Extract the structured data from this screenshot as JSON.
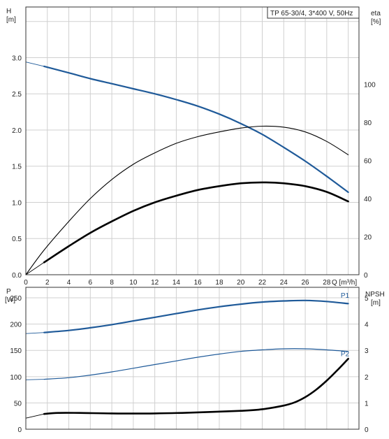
{
  "title": "TP 65-30/4, 3*400 V, 50Hz",
  "colors": {
    "blue": "#1f5a99",
    "black": "#000000",
    "grid": "#d0d0d0",
    "frame": "#333333"
  },
  "chart_data": [
    {
      "type": "line",
      "name": "performance",
      "title": "TP 65-30/4, 3*400 V, 50Hz",
      "xlabel": "Q [m³/h]",
      "x_ticks": [
        0,
        2,
        4,
        6,
        8,
        10,
        12,
        14,
        16,
        18,
        20,
        22,
        24,
        26,
        28
      ],
      "xlim": [
        0,
        31
      ],
      "ylabel_left": [
        "H",
        "[m]"
      ],
      "y_left_ticks": [
        "0.0",
        "0.5",
        "1.0",
        "1.5",
        "2.0",
        "2.5",
        "3.0"
      ],
      "ylim_left": [
        0,
        3.7
      ],
      "ylabel_right": [
        "eta",
        "[%]"
      ],
      "y_right_ticks": [
        "0",
        "20",
        "40",
        "60",
        "80",
        "100"
      ],
      "ylim_right": [
        0,
        140.6
      ],
      "grid": true,
      "series": [
        {
          "key": "H",
          "axis": "left",
          "color": "blue",
          "width": 2.2,
          "x": [
            1.7,
            4,
            6,
            8,
            10,
            12,
            14,
            16,
            18,
            20,
            22,
            24,
            26,
            28,
            30
          ],
          "y": [
            2.88,
            2.79,
            2.71,
            2.64,
            2.57,
            2.5,
            2.42,
            2.33,
            2.22,
            2.09,
            1.94,
            1.76,
            1.57,
            1.36,
            1.14
          ]
        },
        {
          "key": "H_ext",
          "axis": "left",
          "color": "blue",
          "width": 0.9,
          "x": [
            0,
            1.7
          ],
          "y": [
            2.94,
            2.88
          ]
        },
        {
          "key": "eta_thin",
          "axis": "right",
          "color": "black",
          "width": 1.1,
          "x": [
            0,
            1.7,
            4,
            6,
            8,
            10,
            12,
            14,
            16,
            18,
            20,
            22,
            24,
            26,
            28,
            30
          ],
          "y": [
            0,
            13,
            28,
            40,
            50,
            58,
            64,
            69,
            72.5,
            75,
            77,
            78,
            77.5,
            75,
            70,
            63
          ]
        },
        {
          "key": "eta",
          "axis": "right",
          "color": "black",
          "width": 2.6,
          "x": [
            1.7,
            4,
            6,
            8,
            10,
            12,
            14,
            16,
            18,
            20,
            22,
            24,
            26,
            28,
            30
          ],
          "y": [
            6.5,
            15,
            22,
            28,
            33.5,
            38,
            41.5,
            44.5,
            46.5,
            48,
            48.5,
            48,
            46.5,
            43.5,
            38.5
          ]
        },
        {
          "key": "eta_ext",
          "axis": "right",
          "color": "black",
          "width": 0.9,
          "x": [
            0,
            1.7
          ],
          "y": [
            0,
            6.5
          ]
        }
      ]
    },
    {
      "type": "line",
      "name": "power",
      "ylabel_left": [
        "P",
        "[W]"
      ],
      "y_left_ticks": [
        "0",
        "50",
        "100",
        "150",
        "200",
        "250"
      ],
      "ylim_left": [
        0,
        270
      ],
      "ylabel_right": [
        "NPSH",
        "[m]"
      ],
      "y_right_ticks": [
        "0",
        "1",
        "2",
        "3",
        "4",
        "5"
      ],
      "ylim_right": [
        0,
        5.4
      ],
      "xlim": [
        0,
        31
      ],
      "grid": true,
      "labels": [
        {
          "text": "P1",
          "x": 29.3,
          "y": 250
        },
        {
          "text": "P2",
          "x": 29.3,
          "y": 139
        }
      ],
      "series": [
        {
          "key": "P1",
          "axis": "left",
          "color": "blue",
          "width": 2.2,
          "x": [
            1.7,
            4,
            6,
            8,
            10,
            12,
            14,
            16,
            18,
            20,
            22,
            24,
            26,
            28,
            30
          ],
          "y": [
            184,
            188,
            193,
            199,
            206,
            213,
            220,
            227,
            233,
            238,
            242,
            244,
            245,
            243,
            239
          ]
        },
        {
          "key": "P1_ext",
          "axis": "left",
          "color": "blue",
          "width": 0.9,
          "x": [
            0,
            1.7
          ],
          "y": [
            182,
            184
          ]
        },
        {
          "key": "P2",
          "axis": "left",
          "color": "blue",
          "width": 1.2,
          "x": [
            1.7,
            4,
            6,
            8,
            10,
            12,
            14,
            16,
            18,
            20,
            22,
            24,
            26,
            28,
            30
          ],
          "y": [
            95,
            98,
            103,
            109,
            116,
            123,
            130,
            137,
            143,
            148,
            151,
            153,
            153,
            151,
            148
          ]
        },
        {
          "key": "P2_ext",
          "axis": "left",
          "color": "blue",
          "width": 0.9,
          "x": [
            0,
            1.7
          ],
          "y": [
            94,
            95
          ]
        },
        {
          "key": "NPSH",
          "axis": "right",
          "color": "black",
          "width": 2.6,
          "x": [
            1.7,
            3,
            5,
            8,
            12,
            16,
            20,
            22,
            24,
            25,
            26,
            27,
            28,
            29,
            30
          ],
          "y": [
            0.58,
            0.62,
            0.62,
            0.6,
            0.6,
            0.64,
            0.7,
            0.76,
            0.9,
            1.02,
            1.22,
            1.5,
            1.85,
            2.25,
            2.68
          ]
        },
        {
          "key": "NPSH_ext",
          "axis": "right",
          "color": "black",
          "width": 0.9,
          "x": [
            0,
            1.7
          ],
          "y": [
            0.42,
            0.58
          ]
        }
      ]
    }
  ]
}
